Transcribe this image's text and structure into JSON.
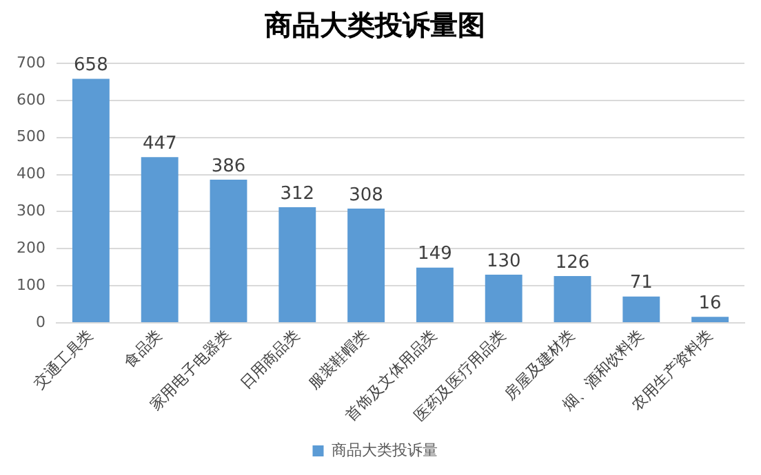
{
  "chart_data": {
    "type": "bar",
    "title": "商品大类投诉量图",
    "categories": [
      "交通工具类",
      "食品类",
      "家用电子电器类",
      "日用商品类",
      "服装鞋帽类",
      "首饰及文体用品类",
      "医药及医疗用品类",
      "房屋及建材类",
      "烟、酒和饮料类",
      "农用生产资料类"
    ],
    "series": [
      {
        "name": "商品大类投诉量",
        "color": "#5b9bd5",
        "values": [
          658,
          447,
          386,
          312,
          308,
          149,
          130,
          126,
          71,
          16
        ]
      }
    ],
    "ylim": [
      0,
      700
    ],
    "yticks": [
      0,
      100,
      200,
      300,
      400,
      500,
      600,
      700
    ],
    "grid": "y",
    "legend": "bottom",
    "data_labels": true
  }
}
